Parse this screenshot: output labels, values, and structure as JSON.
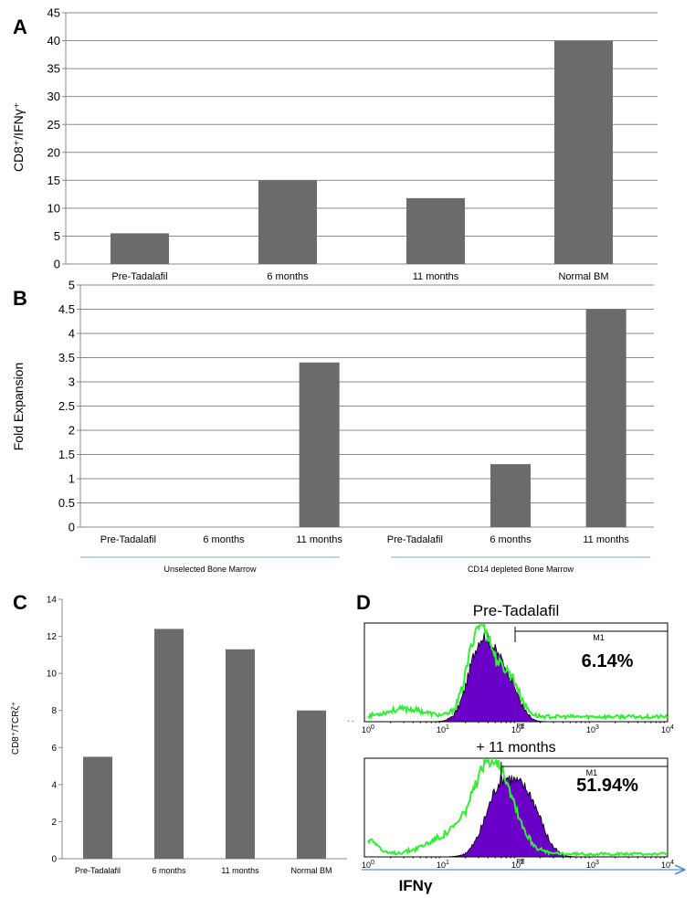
{
  "colors": {
    "bar": "#6b6b6b",
    "grid": "#8a8a8a",
    "axis": "#888888",
    "hist_fill": "#6a00c8",
    "hist_edge": "#000000",
    "green": "#33ee33",
    "arrow": "#5a8fd0",
    "group_line": "#7fb0c0"
  },
  "chart_data": [
    {
      "panel": "A",
      "type": "bar",
      "title": "",
      "ylabel": "CD8⁺/IFNγ⁺",
      "xlabel": "",
      "categories": [
        "Pre-Tadalafil",
        "6 months",
        "11 months",
        "Normal BM"
      ],
      "values": [
        5.5,
        15,
        11.8,
        40
      ],
      "ylim": [
        0,
        45
      ],
      "yticks": [
        0,
        5,
        10,
        15,
        20,
        25,
        30,
        35,
        40,
        45
      ],
      "grid": true
    },
    {
      "panel": "B",
      "type": "bar",
      "title": "",
      "ylabel": "Fold Expansion",
      "xlabel": "",
      "categories": [
        "Pre-Tadalafil",
        "6 months",
        "11 months",
        "Pre-Tadalafil",
        "6 months",
        "11 months"
      ],
      "values": [
        0,
        0,
        3.4,
        0,
        1.3,
        4.5
      ],
      "groups": [
        {
          "label": "Unselected Bone Marrow",
          "start": 0,
          "end": 2
        },
        {
          "label": "CD14 depleted Bone Marrow",
          "start": 3,
          "end": 5
        }
      ],
      "ylim": [
        0,
        5
      ],
      "yticks": [
        "0",
        "0.5",
        "1",
        "1.5",
        "2",
        "2.5",
        "3",
        "3.5",
        "4",
        "4.5",
        "5"
      ],
      "grid": true
    },
    {
      "panel": "C",
      "type": "bar",
      "title": "",
      "ylabel": "CD8⁺/TCRζ⁺",
      "xlabel": "",
      "categories": [
        "Pre-Tadalafil",
        "6 months",
        "11 months",
        "Normal BM"
      ],
      "values": [
        5.5,
        12.4,
        11.3,
        8
      ],
      "ylim": [
        0,
        14
      ],
      "yticks": [
        0,
        2,
        4,
        6,
        8,
        10,
        12,
        14
      ],
      "grid": false
    },
    {
      "panel": "D",
      "type": "histogram",
      "xlabel": "IFNγ",
      "xscale": "log",
      "xlim": [
        1,
        10000
      ],
      "xtick_labels": [
        {
          "base": "10",
          "exp": "0"
        },
        {
          "base": "10",
          "exp": "1"
        },
        {
          "base": "10",
          "exp": "2"
        },
        {
          "base": "10",
          "exp": "3"
        },
        {
          "base": "10",
          "exp": "4"
        }
      ],
      "axis_label": "PE",
      "plots": [
        {
          "title": "Pre-Tadalafil",
          "gate": "M1",
          "gate_range": [
            92,
            10000
          ],
          "percent": "6.14%"
        },
        {
          "title": "+ 11 months",
          "gate": "M1",
          "gate_range": [
            60,
            10000
          ],
          "percent": "51.94%"
        }
      ]
    }
  ],
  "panel_labels": [
    "A",
    "B",
    "C",
    "D"
  ]
}
